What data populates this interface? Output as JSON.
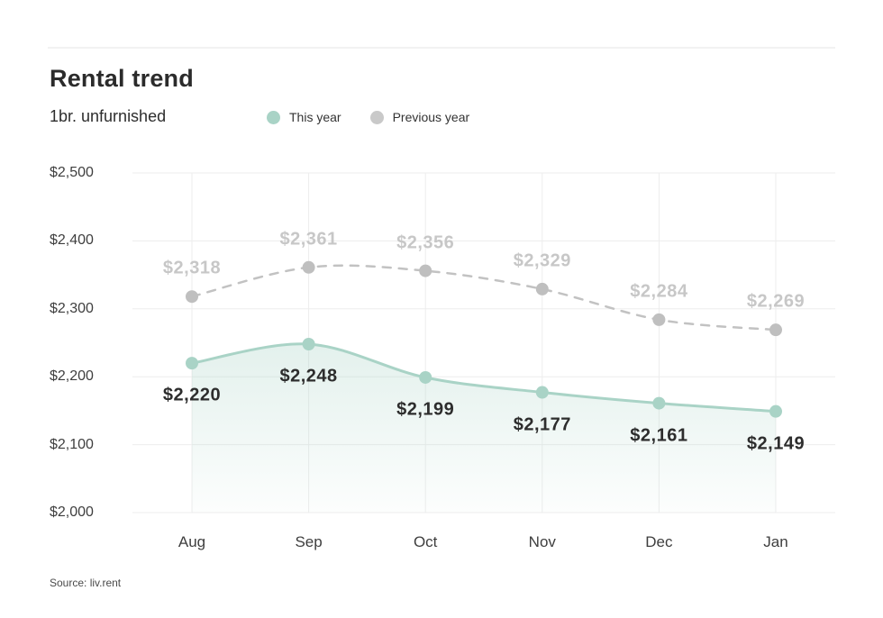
{
  "header": {
    "title": "Rental trend",
    "subtitle": "1br. unfurnished"
  },
  "legend": {
    "items": [
      {
        "label": "This year",
        "color": "#a9d3c6"
      },
      {
        "label": "Previous year",
        "color": "#c9c9c9"
      }
    ]
  },
  "source": "Source: liv.rent",
  "colors": {
    "this_year_line": "#a9d3c6",
    "this_year_fill_top": "rgba(169,211,198,0.32)",
    "this_year_fill_bottom": "rgba(169,211,198,0.03)",
    "previous_year_line": "#c2c2c2",
    "previous_year_dot": "#bfbfbf",
    "grid": "#ededed",
    "dark_label": "#2d2d2d",
    "gray_label": "#c7c7c7",
    "axis_text": "#3e3e3e"
  },
  "chart_data": {
    "type": "line",
    "title": "Rental trend",
    "subtitle": "1br. unfurnished",
    "categories": [
      "Aug",
      "Sep",
      "Oct",
      "Nov",
      "Dec",
      "Jan"
    ],
    "series": [
      {
        "name": "This year",
        "values": [
          2220,
          2248,
          2199,
          2177,
          2161,
          2149
        ],
        "labels": [
          "$2,220",
          "$2,248",
          "$2,199",
          "$2,177",
          "$2,161",
          "$2,149"
        ],
        "color": "#a9d3c6",
        "style": "solid",
        "fill": true,
        "label_color": "#2d2d2d",
        "label_position": "below"
      },
      {
        "name": "Previous year",
        "values": [
          2318,
          2361,
          2356,
          2329,
          2284,
          2269
        ],
        "labels": [
          "$2,318",
          "$2,361",
          "$2,356",
          "$2,329",
          "$2,284",
          "$2,269"
        ],
        "color": "#c2c2c2",
        "style": "dashed",
        "fill": false,
        "label_color": "#c7c7c7",
        "label_position": "above"
      }
    ],
    "y_ticks": [
      {
        "value": 2000,
        "label": "$2,000"
      },
      {
        "value": 2100,
        "label": "$2,100"
      },
      {
        "value": 2200,
        "label": "$2,200"
      },
      {
        "value": 2300,
        "label": "$2,300"
      },
      {
        "value": 2400,
        "label": "$2,400"
      },
      {
        "value": 2500,
        "label": "$2,500"
      }
    ],
    "ylim": [
      2000,
      2500
    ],
    "grid": true,
    "legend_position": "top",
    "xlabel": "",
    "ylabel": ""
  }
}
